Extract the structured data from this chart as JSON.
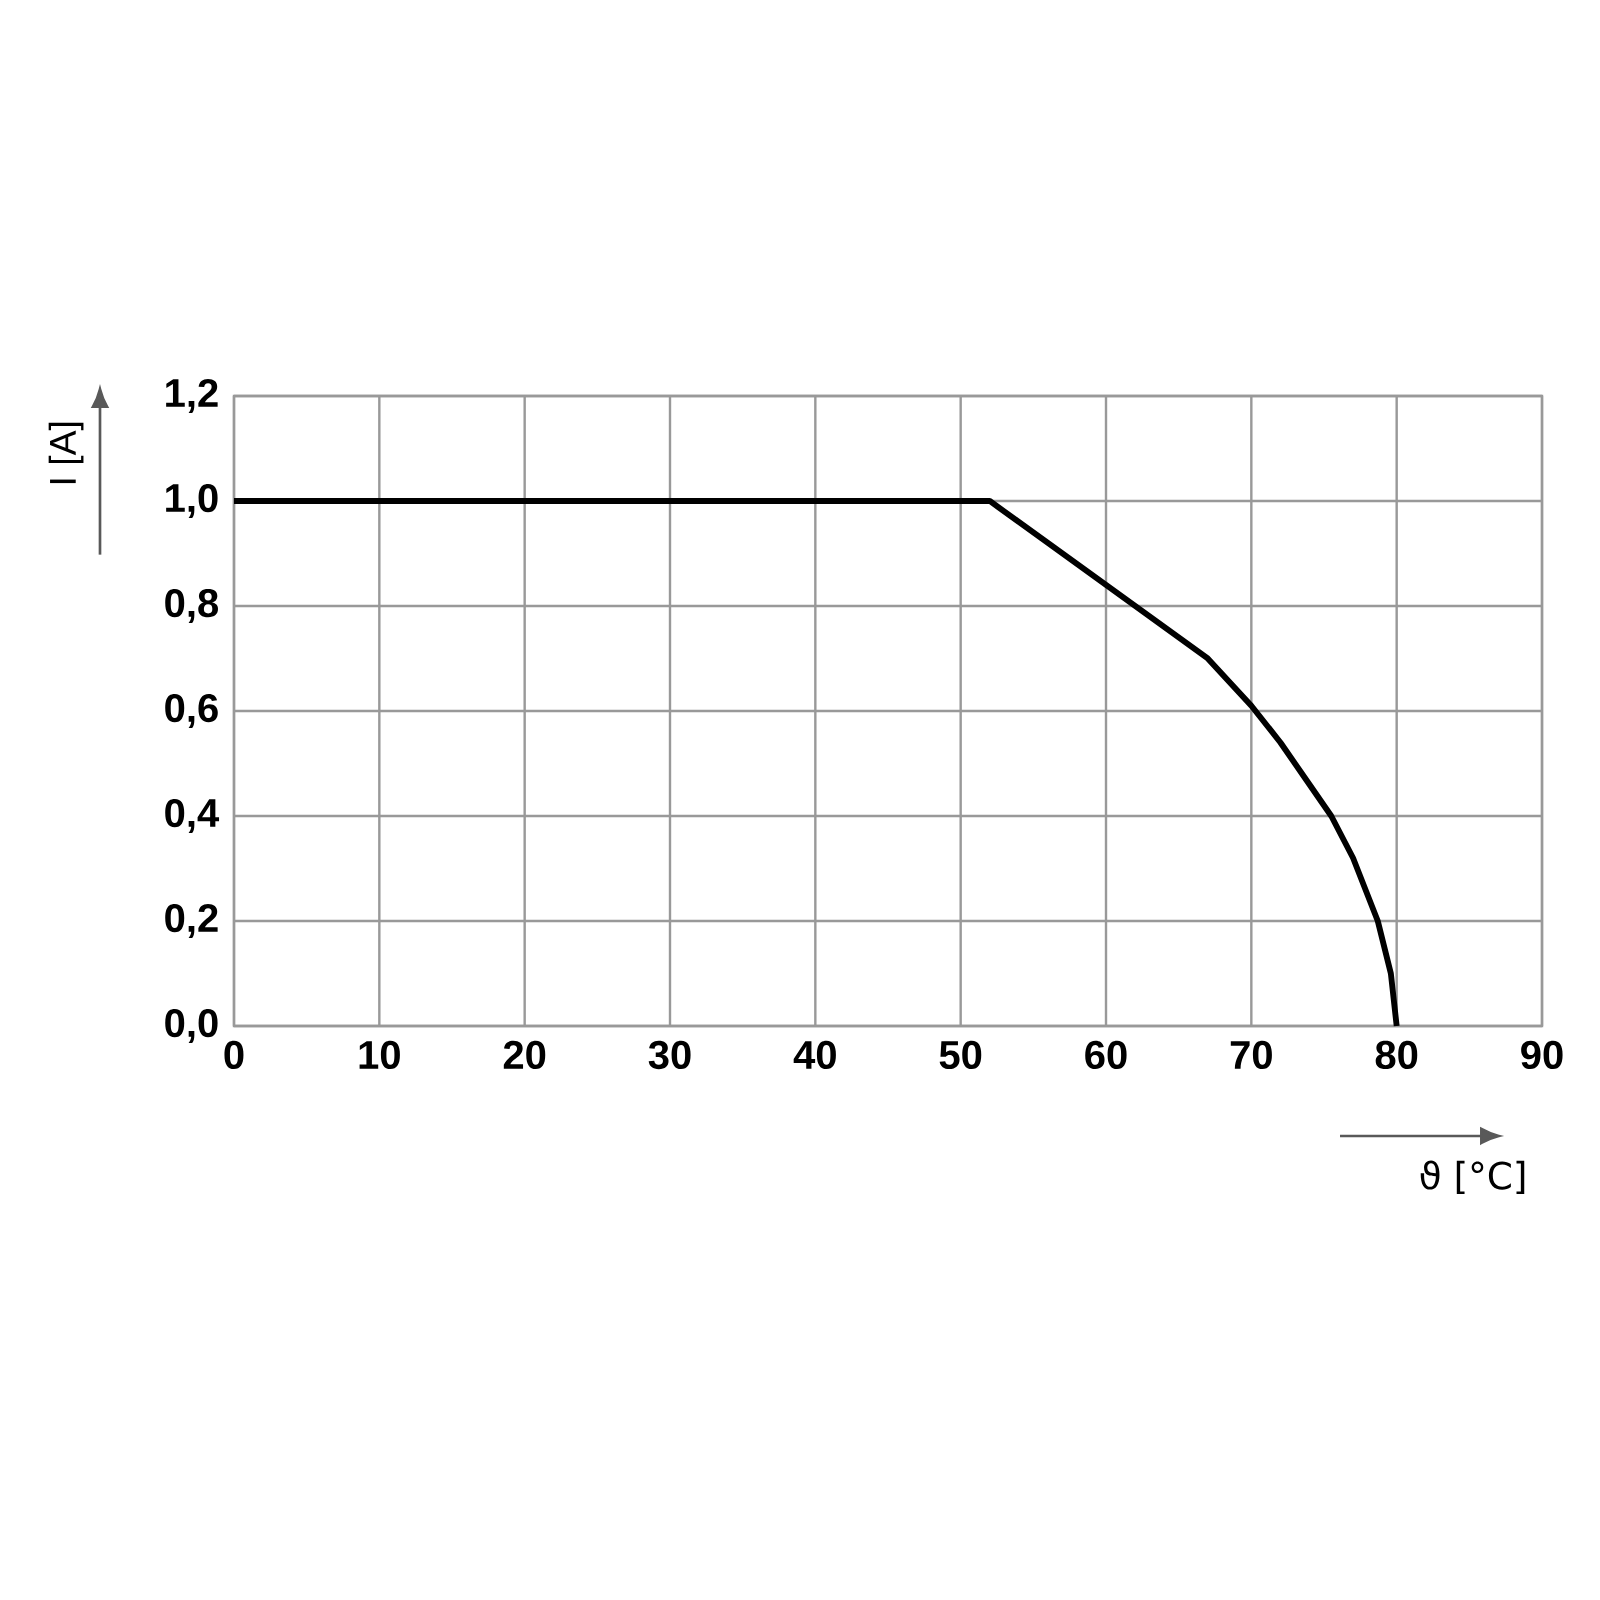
{
  "chart_data": {
    "type": "line",
    "xlabel": "ϑ [°C]",
    "ylabel": "I [A]",
    "x": [
      0,
      52,
      56,
      60,
      62,
      64,
      67,
      70,
      72,
      74,
      75.5,
      77,
      78.7,
      79.6,
      80
    ],
    "values": [
      1.0,
      1.0,
      0.92,
      0.84,
      0.8,
      0.76,
      0.7,
      0.61,
      0.54,
      0.46,
      0.4,
      0.32,
      0.2,
      0.1,
      0.0
    ],
    "color": "#000000",
    "xlim": [
      0,
      90
    ],
    "xticks": [
      0,
      10,
      20,
      30,
      40,
      50,
      60,
      70,
      80,
      90
    ],
    "ylim": [
      0,
      1.2
    ],
    "yticks": [
      {
        "value": 0,
        "label": "0,0"
      },
      {
        "value": 0.2,
        "label": "0,2"
      },
      {
        "value": 0.4,
        "label": "0,4"
      },
      {
        "value": 0.6,
        "label": "0,6"
      },
      {
        "value": 0.8,
        "label": "0,8"
      },
      {
        "value": 1.0,
        "label": "1,0"
      },
      {
        "value": 1.2,
        "label": "1,2"
      }
    ],
    "grid": true
  }
}
